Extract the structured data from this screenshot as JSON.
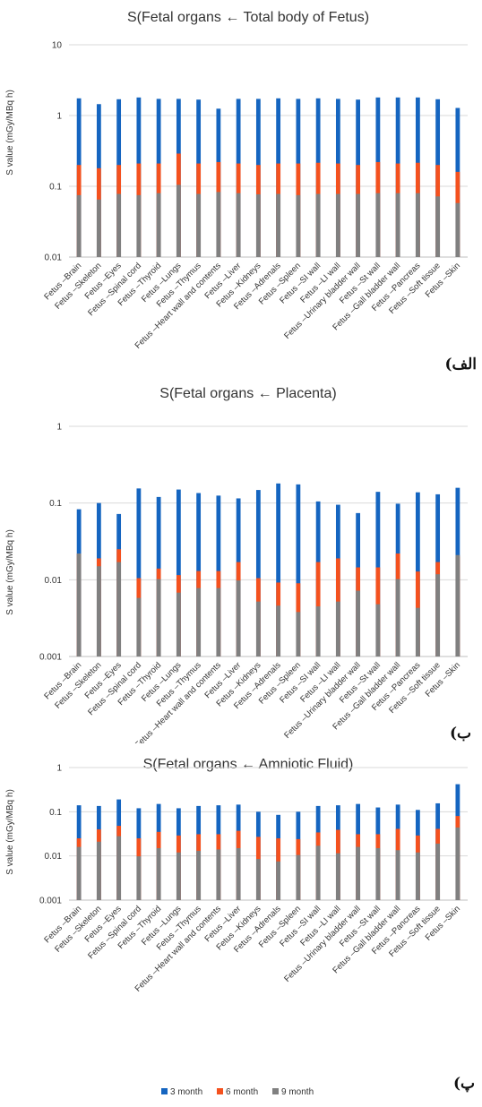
{
  "colors": {
    "3 month": "#1565C0",
    "6 month": "#F4511E",
    "9 month": "#808080"
  },
  "legend": [
    "3 month",
    "6 month",
    "9 month"
  ],
  "chart_data": [
    {
      "type": "bar",
      "title": "S(Fetal organs ← Total body of Fetus)",
      "ylabel": "S value (mGy/MBq h)",
      "yscale": "log",
      "ylim": [
        0.01,
        10
      ],
      "yticks": [
        "10",
        "1",
        "0.1",
        "0.01"
      ],
      "panel_label": "(الف",
      "categories": [
        "Fetus –Brain",
        "Fetus –Skeleton",
        "Fetus –Eyes",
        "Fetus –Spinal cord",
        "Fetus –Thyroid",
        "Fetus –Lungs",
        "Fetus –Thymus",
        "Fetus –Heart wall and contents",
        "Fetus –Liver",
        "Fetus –Kidneys",
        "Fetus –Adrenals",
        "Fetus –Spleen",
        "Fetus –SI wall",
        "Fetus –LI wall",
        "Fetus –Urinary bladder wall",
        "Fetus –St wall",
        "Fetus –Gall bladder wall",
        "Fetus –Pancreas",
        "Fetus –Soft tissue",
        "Fetus –Skin"
      ],
      "series": [
        {
          "name": "3 month",
          "values": [
            1.75,
            1.45,
            1.7,
            1.8,
            1.72,
            1.72,
            1.68,
            1.25,
            1.72,
            1.72,
            1.75,
            1.72,
            1.75,
            1.72,
            1.68,
            1.8,
            1.8,
            1.8,
            1.7,
            1.28
          ]
        },
        {
          "name": "6 month",
          "values": [
            0.2,
            0.18,
            0.2,
            0.21,
            0.21,
            0.29,
            0.21,
            0.22,
            0.21,
            0.2,
            0.21,
            0.21,
            0.215,
            0.21,
            0.2,
            0.22,
            0.21,
            0.215,
            0.2,
            0.16
          ]
        },
        {
          "name": "9 month",
          "values": [
            0.075,
            0.065,
            0.078,
            0.075,
            0.08,
            0.105,
            0.078,
            0.083,
            0.08,
            0.077,
            0.078,
            0.075,
            0.078,
            0.078,
            0.078,
            0.08,
            0.08,
            0.08,
            0.072,
            0.058
          ]
        }
      ]
    },
    {
      "type": "bar",
      "title": "S(Fetal organs ← Placenta)",
      "ylabel": "S value (mGy/MBq h)",
      "yscale": "log",
      "ylim": [
        0.001,
        1
      ],
      "yticks": [
        "1",
        "0.1",
        "0.01",
        "0.001"
      ],
      "panel_label": "(ب",
      "categories": [
        "Fetus –Brain",
        "Fetus –Skeleton",
        "Fetus –Eyes",
        "Fetus –Spinal cord",
        "Fetus –Thyroid",
        "Fetus –Lungs",
        "Fetus –Thymus",
        "Fetus –Heart wall and contents",
        "Fetus –Liver",
        "Fetus –Kidneys",
        "Fetus –Adrenals",
        "Fetus –Spleen",
        "Fetus –SI wall",
        "Fetus –LI wall",
        "Fetus –Urinary bladder wall",
        "Fetus –St wall",
        "Fetus –Gall bladder wall",
        "Fetus –Pancreas",
        "Fetus –Soft tissue",
        "Fetus –Skin"
      ],
      "series": [
        {
          "name": "3 month",
          "values": [
            0.083,
            0.1,
            0.072,
            0.155,
            0.12,
            0.15,
            0.135,
            0.125,
            0.115,
            0.148,
            0.18,
            0.175,
            0.105,
            0.095,
            0.074,
            0.14,
            0.098,
            0.138,
            0.13,
            0.158
          ]
        },
        {
          "name": "6 month",
          "values": [
            0.022,
            0.019,
            0.025,
            0.0105,
            0.014,
            0.0115,
            0.013,
            0.013,
            0.017,
            0.0105,
            0.0092,
            0.009,
            0.017,
            0.019,
            0.0145,
            0.0145,
            0.022,
            0.0128,
            0.017,
            0.02
          ]
        },
        {
          "name": "9 month",
          "values": [
            0.022,
            0.015,
            0.017,
            0.0058,
            0.0102,
            0.0068,
            0.0078,
            0.0078,
            0.0098,
            0.0052,
            0.0046,
            0.0038,
            0.0045,
            0.0052,
            0.0072,
            0.0048,
            0.0102,
            0.0043,
            0.0118,
            0.021
          ]
        }
      ]
    },
    {
      "type": "bar",
      "title": "S(Fetal organs ← Amniotic Fluid)",
      "ylabel": "S value (mGy/MBq h)",
      "yscale": "log",
      "ylim": [
        0.001,
        1
      ],
      "yticks": [
        "1",
        "0.1",
        "0.01",
        "0.001"
      ],
      "panel_label": "(پ",
      "categories": [
        "Fetus –Brain",
        "Fetus –Skeleton",
        "Fetus –Eyes",
        "Fetus –Spinal cord",
        "Fetus –Thyroid",
        "Fetus –Lungs",
        "Fetus –Thymus",
        "Fetus –Heart wall and contents",
        "Fetus –Liver",
        "Fetus –Kidneys",
        "Fetus –Adrenals",
        "Fetus –Spleen",
        "Fetus –SI wall",
        "Fetus –LI wall",
        "Fetus –Urinary bladder wall",
        "Fetus –St wall",
        "Fetus –Gall bladder wall",
        "Fetus –Pancreas",
        "Fetus –Soft tissue",
        "Fetus –Skin"
      ],
      "series": [
        {
          "name": "3 month",
          "values": [
            0.14,
            0.135,
            0.19,
            0.12,
            0.15,
            0.12,
            0.135,
            0.14,
            0.145,
            0.1,
            0.085,
            0.1,
            0.135,
            0.14,
            0.15,
            0.125,
            0.145,
            0.11,
            0.155,
            0.42
          ]
        },
        {
          "name": "6 month",
          "values": [
            0.025,
            0.04,
            0.048,
            0.025,
            0.035,
            0.029,
            0.031,
            0.031,
            0.037,
            0.027,
            0.025,
            0.024,
            0.034,
            0.039,
            0.031,
            0.031,
            0.041,
            0.029,
            0.041,
            0.08
          ]
        },
        {
          "name": "9 month",
          "values": [
            0.016,
            0.021,
            0.028,
            0.0098,
            0.015,
            0.012,
            0.013,
            0.014,
            0.015,
            0.0085,
            0.0075,
            0.0105,
            0.017,
            0.0115,
            0.016,
            0.015,
            0.0135,
            0.012,
            0.019,
            0.044
          ]
        }
      ]
    }
  ]
}
